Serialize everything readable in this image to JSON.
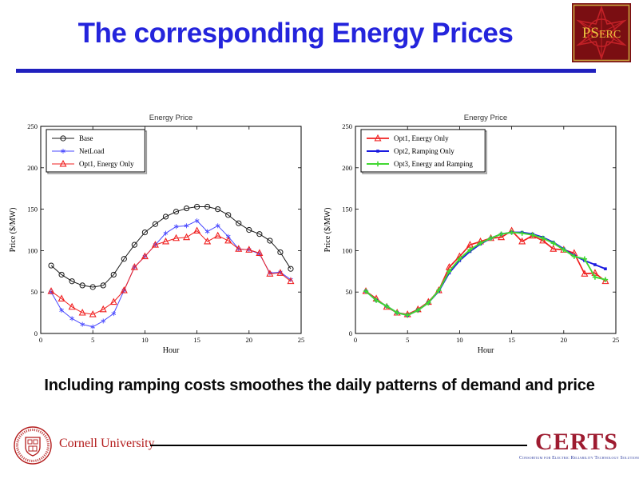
{
  "header": {
    "title": "The corresponding Energy Prices",
    "pserc_label_ps": "PS",
    "pserc_label_erc": "ERC"
  },
  "statement": "Including ramping costs smoothes the daily patterns of demand and price",
  "footer": {
    "cornell_wordmark": "Cornell University",
    "certs_title": "CERTS",
    "certs_subtitle": "Consortium for Electric Reliability Technology Solutions"
  },
  "colors": {
    "title_blue": "#2424dc",
    "rule_blue": "#2020be",
    "cornell_crimson": "#b31b1b",
    "certs_red": "#9e1b30",
    "certs_blue": "#2b3a9e",
    "pserc_maroon": "#7a0e12",
    "pserc_star_red": "#c32127",
    "pserc_gold": "#eec33e"
  },
  "chart_data": [
    {
      "type": "line",
      "title": "Energy Price",
      "xlabel": "Hour",
      "ylabel": "Price ($/MW)",
      "xlim": [
        0,
        25
      ],
      "ylim": [
        0,
        250
      ],
      "xticks": [
        0,
        5,
        10,
        15,
        20,
        25
      ],
      "yticks": [
        0,
        50,
        100,
        150,
        200,
        250
      ],
      "legend_position": "top-left",
      "x": [
        1,
        2,
        3,
        4,
        5,
        6,
        7,
        8,
        9,
        10,
        11,
        12,
        13,
        14,
        15,
        16,
        17,
        18,
        19,
        20,
        21,
        22,
        23,
        24
      ],
      "series": [
        {
          "name": "Base",
          "color": "#1a1a1a",
          "marker": "circle",
          "line_width": 1,
          "values": [
            82,
            71,
            63,
            58,
            56,
            58,
            71,
            90,
            107,
            122,
            132,
            141,
            147,
            151,
            153,
            153,
            150,
            143,
            133,
            125,
            120,
            112,
            98,
            78
          ]
        },
        {
          "name": "NetLoad",
          "color": "#4a4aff",
          "marker": "asterisk",
          "line_width": 1,
          "values": [
            50,
            28,
            18,
            11,
            8,
            15,
            24,
            52,
            80,
            93,
            107,
            121,
            129,
            130,
            136,
            123,
            130,
            117,
            102,
            101,
            96,
            73,
            74,
            65
          ]
        },
        {
          "name": "Opt1, Energy Only",
          "color": "#f02020",
          "marker": "triangle",
          "line_width": 1,
          "values": [
            51,
            42,
            32,
            25,
            23,
            29,
            38,
            52,
            80,
            93,
            107,
            111,
            115,
            116,
            124,
            111,
            118,
            112,
            102,
            101,
            97,
            72,
            73,
            63
          ]
        }
      ]
    },
    {
      "type": "line",
      "title": "Energy Price",
      "xlabel": "Hour",
      "ylabel": "Price ($/MW)",
      "xlim": [
        0,
        25
      ],
      "ylim": [
        0,
        250
      ],
      "xticks": [
        0,
        5,
        10,
        15,
        20,
        25
      ],
      "yticks": [
        0,
        50,
        100,
        150,
        200,
        250
      ],
      "legend_position": "top-left",
      "x": [
        1,
        2,
        3,
        4,
        5,
        6,
        7,
        8,
        9,
        10,
        11,
        12,
        13,
        14,
        15,
        16,
        17,
        18,
        19,
        20,
        21,
        22,
        23,
        24
      ],
      "series": [
        {
          "name": "Opt1, Energy Only",
          "color": "#f02020",
          "marker": "triangle",
          "line_width": 1.7,
          "values": [
            51,
            42,
            32,
            25,
            23,
            29,
            38,
            52,
            80,
            93,
            107,
            111,
            115,
            116,
            124,
            111,
            118,
            112,
            102,
            101,
            97,
            72,
            73,
            63
          ]
        },
        {
          "name": "Opt2, Ramping Only",
          "color": "#1a1ae0",
          "marker": "square",
          "line_width": 1.9,
          "values": [
            51,
            40,
            33,
            25,
            22,
            28,
            37,
            51,
            73,
            88,
            99,
            108,
            115,
            120,
            122,
            122,
            120,
            116,
            110,
            102,
            94,
            88,
            83,
            78
          ]
        },
        {
          "name": "Opt3, Energy and Ramping",
          "color": "#41d832",
          "marker": "plus",
          "line_width": 1.9,
          "values": [
            51,
            40,
            33,
            25,
            22,
            28,
            37,
            52,
            75,
            90,
            101,
            109,
            115,
            120,
            122,
            121,
            119,
            115,
            109,
            101,
            93,
            90,
            68,
            65
          ]
        }
      ]
    }
  ]
}
